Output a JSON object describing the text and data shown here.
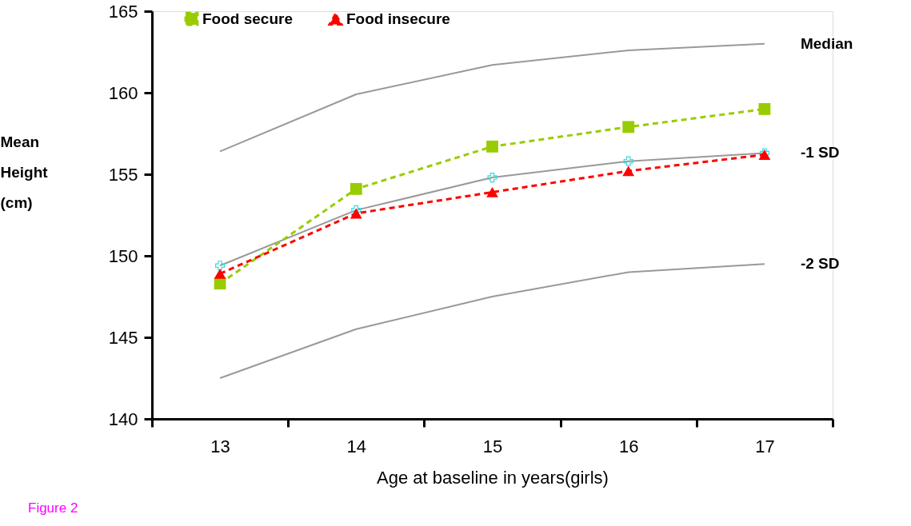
{
  "chart_data": {
    "type": "line",
    "xlabel": "Age at baseline in years(girls)",
    "ylabel": "Mean Height (cm)",
    "categories": [
      "13",
      "14",
      "15",
      "16",
      "17"
    ],
    "ylim": [
      140,
      165
    ],
    "yticks": [
      140,
      145,
      150,
      155,
      160,
      165
    ],
    "grid": false,
    "legend": "top",
    "series": [
      {
        "name": "Median",
        "color": "#999999",
        "values": [
          156.4,
          159.9,
          161.7,
          162.6,
          163.0
        ],
        "marker": "none",
        "line_style": "solid"
      },
      {
        "name": "-1 SD",
        "color": "#999999",
        "values": [
          149.4,
          152.8,
          154.8,
          155.8,
          156.3
        ],
        "marker": "cross",
        "colors": [
          "#33dddd",
          "#33dddd",
          "#33dddd",
          "#33dddd",
          "#33dddd"
        ],
        "line_style": "solid"
      },
      {
        "name": "-2 SD",
        "color": "#999999",
        "values": [
          142.5,
          145.5,
          147.5,
          149.0,
          149.5
        ],
        "marker": "none",
        "line_style": "solid"
      },
      {
        "name": "Food secure",
        "color": "#99cc00",
        "values": [
          148.3,
          154.1,
          156.7,
          157.9,
          159.0
        ],
        "marker": "square",
        "line_style": "dashed"
      },
      {
        "name": "Food insecure",
        "color": "#ff0000",
        "values": [
          148.9,
          152.6,
          153.9,
          155.2,
          156.2
        ],
        "marker": "triangle",
        "line_style": "dashed"
      }
    ],
    "annotations": [
      "Figure 2"
    ]
  }
}
